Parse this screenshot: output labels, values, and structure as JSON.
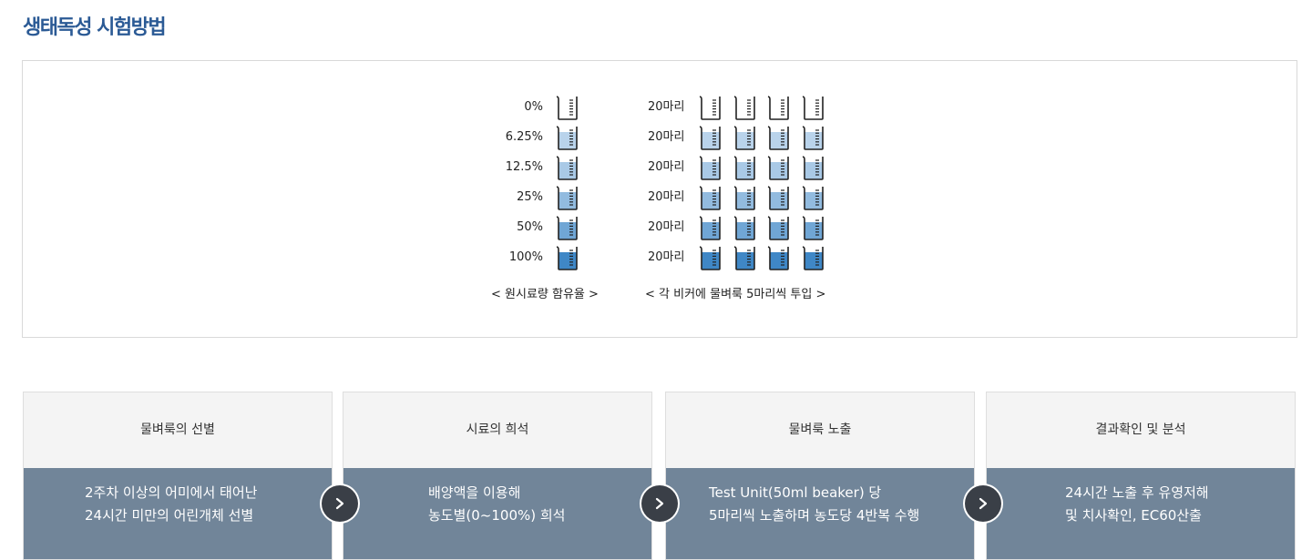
{
  "page": {
    "title": "생태독성 시험방법"
  },
  "diagram": {
    "rows": [
      {
        "concentration": "0%",
        "count": "20마리",
        "fill_level": 0.0
      },
      {
        "concentration": "6.25%",
        "count": "20마리",
        "fill_level": 0.0625
      },
      {
        "concentration": "12.5%",
        "count": "20마리",
        "fill_level": 0.125
      },
      {
        "concentration": "25%",
        "count": "20마리",
        "fill_level": 0.25
      },
      {
        "concentration": "50%",
        "count": "20마리",
        "fill_level": 0.5
      },
      {
        "concentration": "100%",
        "count": "20마리",
        "fill_level": 1.0
      }
    ],
    "caption_left": "< 원시료량 함유율 >",
    "caption_right": "< 각 비커에 물벼룩 5마리씩 투입 >",
    "colors": {
      "beaker_outline": "#222222",
      "liquid_light": "#dbe8f5",
      "liquid_dark": "#3f87c6"
    }
  },
  "steps": [
    {
      "title": "물벼룩의 선별",
      "lines": [
        "2주차 이상의 어미에서 태어난",
        "24시간 미만의 어린개체 선별"
      ]
    },
    {
      "title": "시료의 희석",
      "lines": [
        "배양액을 이용해",
        "농도별(0~100%) 희석"
      ]
    },
    {
      "title": "물벼룩 노출",
      "lines": [
        "Test Unit(50ml beaker) 당",
        "5마리씩 노출하며 농도당 4반복 수행"
      ]
    },
    {
      "title": "결과확인 및 분석",
      "lines": [
        "24시간 노출 후 유영저해",
        "및 치사확인, EC60산출"
      ]
    }
  ],
  "arrows": [
    {
      "icon": "chevron-right-icon"
    },
    {
      "icon": "chevron-right-icon"
    },
    {
      "icon": "chevron-right-icon"
    }
  ]
}
